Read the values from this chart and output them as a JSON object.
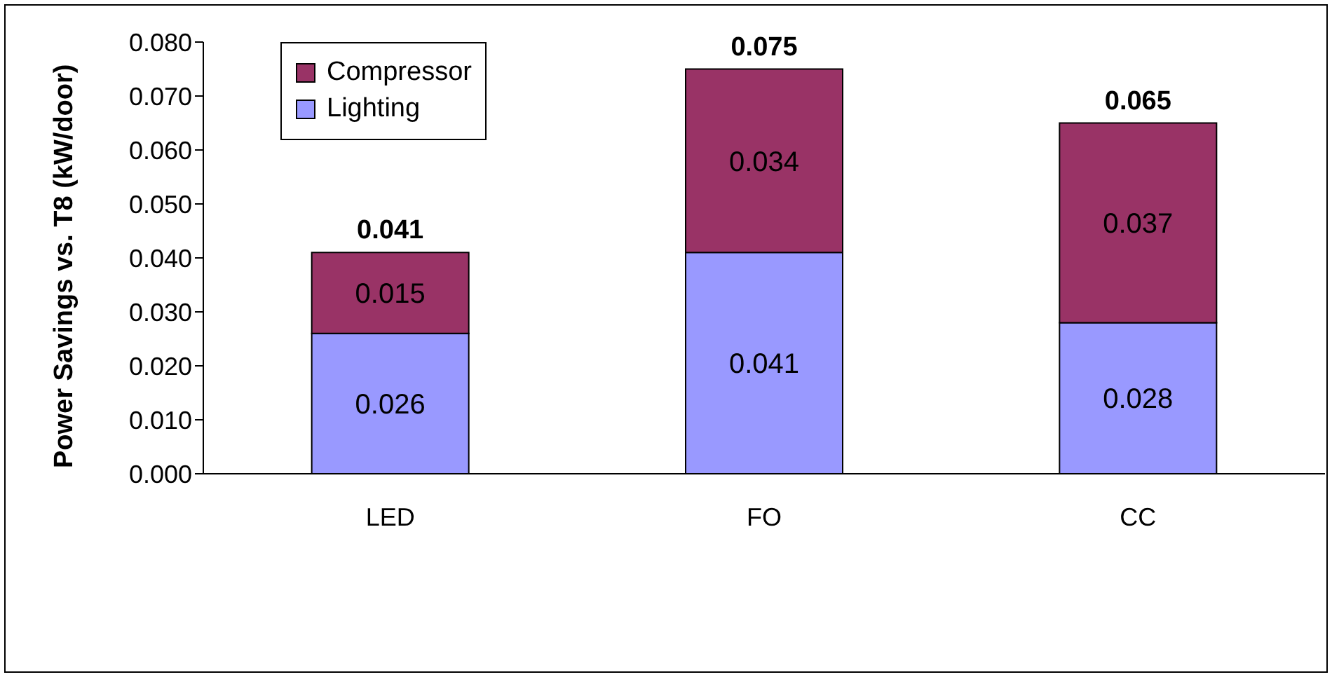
{
  "chart_data": {
    "type": "bar",
    "stacked": true,
    "ylabel": "Power Savings vs. T8 (kW/door)",
    "categories": [
      "LED",
      "FO",
      "CC"
    ],
    "series": [
      {
        "name": "Lighting",
        "color": "#9999ff",
        "values": [
          0.026,
          0.041,
          0.028
        ]
      },
      {
        "name": "Compressor",
        "color": "#993366",
        "values": [
          0.015,
          0.034,
          0.037
        ]
      }
    ],
    "totals": [
      "0.041",
      "0.075",
      "0.065"
    ],
    "data_labels": true,
    "ylim": [
      0,
      0.08
    ],
    "yticks": [
      {
        "value": 0,
        "label": "0.000"
      },
      {
        "value": 0.01,
        "label": "0.010"
      },
      {
        "value": 0.02,
        "label": "0.020"
      },
      {
        "value": 0.03,
        "label": "0.030"
      },
      {
        "value": 0.04,
        "label": "0.040"
      },
      {
        "value": 0.05,
        "label": "0.050"
      },
      {
        "value": 0.06,
        "label": "0.060"
      },
      {
        "value": 0.07,
        "label": "0.070"
      },
      {
        "value": 0.08,
        "label": "0.080"
      }
    ],
    "grid": false,
    "legend": "top left"
  }
}
